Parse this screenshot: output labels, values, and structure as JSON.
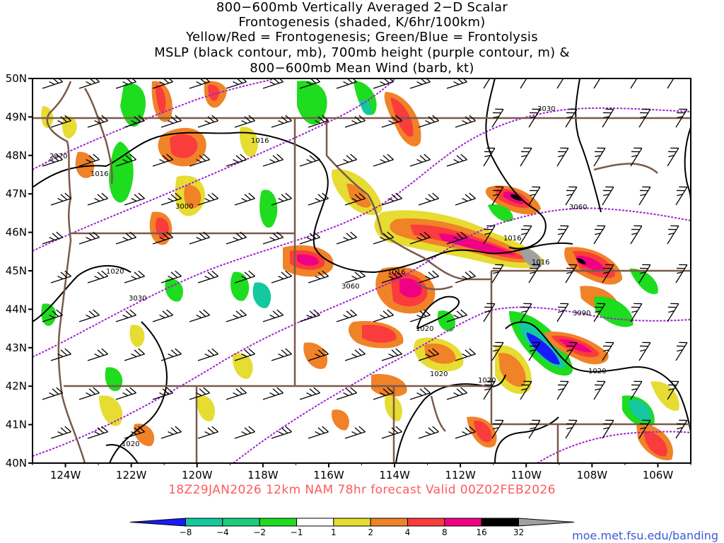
{
  "title_lines": [
    "800−600mb Vertically Averaged 2−D Scalar",
    "Frontogenesis (shaded, K/6hr/100km)",
    "Yellow/Red = Frontogenesis;  Green/Blue = Frontolysis",
    "MSLP (black contour, mb), 700mb height (purple contour, m) &",
    "800−600mb Mean Wind (barb, kt)"
  ],
  "lat_labels": [
    "50N",
    "49N",
    "48N",
    "47N",
    "46N",
    "45N",
    "44N",
    "43N",
    "42N",
    "41N",
    "40N"
  ],
  "lon_labels": [
    "124W",
    "122W",
    "120W",
    "118W",
    "116W",
    "114W",
    "112W",
    "110W",
    "108W",
    "106W"
  ],
  "map_extent": {
    "lon": [
      -125,
      -105
    ],
    "lat": [
      40,
      50
    ]
  },
  "mslp_labels": [
    "1016",
    "1016",
    "1016",
    "1016",
    "1016",
    "1020",
    "1020",
    "1020",
    "1020",
    "1020",
    "1020"
  ],
  "height_labels": [
    "2970",
    "3000",
    "3030",
    "3060",
    "3060",
    "3030",
    "3090"
  ],
  "footer": "18Z29JAN2026 12km NAM 78hr forecast Valid 00Z02FEB2026",
  "credit": "moe.met.fsu.edu/banding",
  "colorbar": {
    "labels": [
      "−8",
      "−4",
      "−2",
      "−1",
      "1",
      "2",
      "4",
      "8",
      "16",
      "32"
    ],
    "colors": [
      "#1a1aff",
      "#14c8a0",
      "#19cd7d",
      "#1edc1e",
      "#ffffff",
      "#e6dc32",
      "#f08228",
      "#fa3c3c",
      "#f00082",
      "#000000",
      "#a0a0a0"
    ]
  },
  "colors": {
    "mslp": "#000000",
    "height": "#a020d0",
    "border": "#7a5a4a",
    "frontogenesis": [
      "#e6dc32",
      "#f08228",
      "#fa3c3c",
      "#f00082"
    ],
    "frontolysis": [
      "#1edc1e",
      "#19cd7d",
      "#14c8a0",
      "#1a1aff"
    ]
  }
}
